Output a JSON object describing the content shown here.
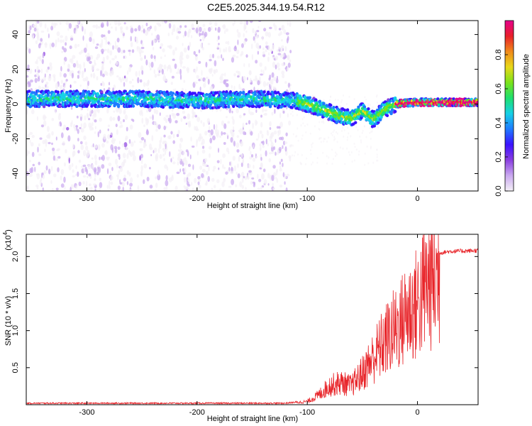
{
  "title": "C2E5.2025.344.19.54.R12",
  "colors": {
    "signal": "#e8252a",
    "axis": "#000000",
    "colormap": [
      "#f4f0f6",
      "#c9a8ef",
      "#8a3ee0",
      "#3a12ff",
      "#1f7bff",
      "#16d0e6",
      "#1ee06e",
      "#7be21a",
      "#e8d81a",
      "#f08a1a",
      "#e8202a",
      "#e6008c"
    ]
  },
  "chart_data": [
    {
      "type": "heatmap",
      "title": "C2E5.2025.344.19.54.R12",
      "xlabel": "Height of straight line (km)",
      "ylabel": "Frequency (Hz)",
      "xlim": [
        -355,
        55
      ],
      "ylim": [
        -50,
        48
      ],
      "xticks": [
        -300,
        -200,
        -100,
        0
      ],
      "xtick_labels": [
        "-300",
        "-200",
        "-100",
        "0"
      ],
      "yticks": [
        -40,
        -20,
        0,
        20,
        40
      ],
      "ytick_labels": [
        "-40",
        "-20",
        "0",
        "20",
        "40"
      ],
      "colorbar": {
        "label": "Normalized spectral amplitude",
        "range": [
          0,
          1
        ],
        "ticks": [
          0.0,
          0.2,
          0.4,
          0.6,
          0.8
        ],
        "tick_labels": [
          "0.0",
          "0.2",
          "0.4",
          "0.6",
          "0.8"
        ]
      },
      "ridge": {
        "x": [
          -355,
          -300,
          -250,
          -200,
          -150,
          -110,
          -90,
          -70,
          -60,
          -50,
          -45,
          -40,
          -30,
          -20,
          0,
          20,
          55
        ],
        "y": [
          3,
          3,
          3,
          2,
          3,
          2,
          -2,
          -7,
          -8,
          -4,
          -6,
          -9,
          -3,
          0,
          1,
          1,
          1
        ]
      },
      "dense_noise_until": -115
    },
    {
      "type": "line",
      "xlabel": "Height of straight line (km)",
      "ylabel": "SNR (10 * v/v)",
      "scale_note": "(x10",
      "scale_exponent": "4",
      "xlim": [
        -355,
        55
      ],
      "ylim": [
        0,
        2.3
      ],
      "xticks": [
        -300,
        -200,
        -100,
        0
      ],
      "xtick_labels": [
        "-300",
        "-200",
        "-100",
        "0"
      ],
      "yticks": [
        0.5,
        1.0,
        1.5,
        2.0
      ],
      "ytick_labels": [
        "0.5",
        "1.0",
        "1.5",
        "2.0"
      ],
      "series": [
        {
          "name": "SNR",
          "envelope_x": [
            -355,
            -120,
            -100,
            -90,
            -80,
            -70,
            -60,
            -50,
            -40,
            -30,
            -20,
            -15,
            -10,
            0,
            10,
            20,
            30,
            55
          ],
          "envelope_y": [
            0.02,
            0.02,
            0.05,
            0.15,
            0.3,
            0.35,
            0.3,
            0.5,
            0.75,
            1.0,
            1.2,
            1.3,
            1.45,
            1.6,
            1.95,
            2.05,
            2.07,
            2.08
          ]
        }
      ]
    }
  ]
}
